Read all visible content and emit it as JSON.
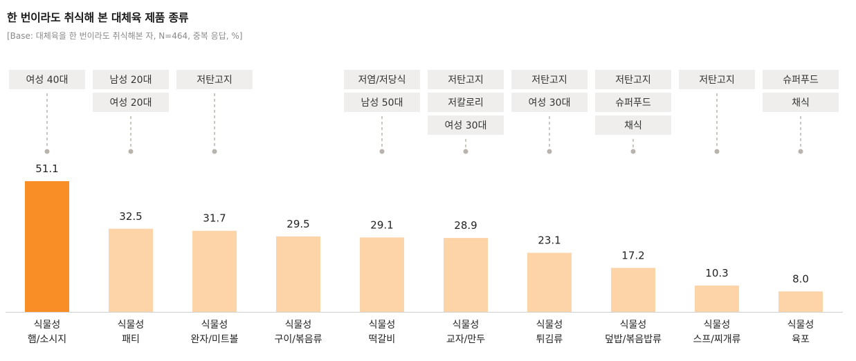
{
  "header": {
    "title": "한 번이라도 취식해 본 대체육 제품 종류",
    "subtitle": "[Base: 대체육을 한 번이라도 취식해본 자, N=464, 중복 응답, %]"
  },
  "colors": {
    "highlight_bar": "#F98E26",
    "bar": "#FDD3A8",
    "tag_bg": "#EFEEEC",
    "connector": "#B8B3AC",
    "axis": "#CFCFCF"
  },
  "chart_data": {
    "type": "bar",
    "title": "한 번이라도 취식해 본 대체육 제품 종류",
    "categories": [
      [
        "식물성",
        "햄/소시지"
      ],
      [
        "식물성",
        "패티"
      ],
      [
        "식물성",
        "완자/미트볼"
      ],
      [
        "식물성",
        "구이/볶음류"
      ],
      [
        "식물성",
        "떡갈비"
      ],
      [
        "식물성",
        "교자/만두"
      ],
      [
        "식물성",
        "튀김류"
      ],
      [
        "식물성",
        "덮밥/볶음밥류"
      ],
      [
        "식물성",
        "스프/찌개류"
      ],
      [
        "식물성",
        "육포"
      ]
    ],
    "values": [
      51.1,
      32.5,
      31.7,
      29.5,
      29.1,
      28.9,
      23.1,
      17.2,
      10.3,
      8.0
    ],
    "value_labels": [
      "51.1",
      "32.5",
      "31.7",
      "29.5",
      "29.1",
      "28.9",
      "23.1",
      "17.2",
      "10.3",
      "8.0"
    ],
    "highlight_index": 0,
    "annotations": [
      [
        "여성 40대"
      ],
      [
        "남성 20대",
        "여성 20대"
      ],
      [
        "저탄고지"
      ],
      [],
      [
        "저염/저당식",
        "남성 50대"
      ],
      [
        "저탄고지",
        "저칼로리",
        "여성 30대"
      ],
      [
        "저탄고지",
        "여성 30대"
      ],
      [
        "저탄고지",
        "슈퍼푸드",
        "채식"
      ],
      [
        "저탄고지"
      ],
      [
        "슈퍼푸드",
        "채식"
      ]
    ],
    "ylim": [
      0,
      60
    ],
    "xlabel": "",
    "ylabel": "",
    "grid": false
  }
}
